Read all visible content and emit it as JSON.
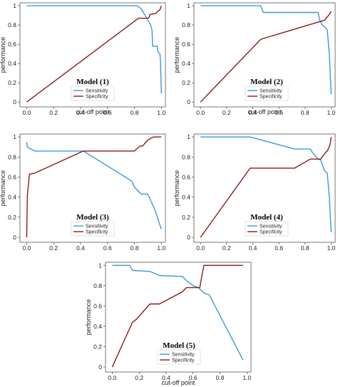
{
  "colors": {
    "sensitivity": "#3a9ad9",
    "specificity": "#8b1a1a"
  },
  "chart_data": [
    {
      "type": "line",
      "title": "Model (1)",
      "xlabel": "cut-off point",
      "ylabel": "performance",
      "xlim": [
        -0.05,
        1.03
      ],
      "ylim": [
        -0.05,
        1.03
      ],
      "xticks": [
        "0.0",
        "0.2",
        "0.4",
        "0.6",
        "0.8",
        "1.0"
      ],
      "yticks": [
        "0",
        "0.2",
        "0.4",
        "0.6",
        "0.8",
        "1"
      ],
      "legend_position": "bottom-right",
      "series": [
        {
          "name": "Sensitivity",
          "color_key": "sensitivity",
          "x": [
            0.0,
            0.82,
            0.85,
            0.9,
            0.92,
            0.93,
            0.935,
            0.97,
            0.975,
            0.99,
            0.993,
            1.0
          ],
          "y": [
            1.0,
            1.0,
            0.97,
            0.85,
            0.8,
            0.75,
            0.58,
            0.58,
            0.52,
            0.5,
            0.42,
            0.09
          ]
        },
        {
          "name": "Specificity",
          "color_key": "specificity",
          "x": [
            0.0,
            0.83,
            0.9,
            0.91,
            0.915,
            0.96,
            0.97,
            0.99,
            1.0
          ],
          "y": [
            0.0,
            0.87,
            0.87,
            0.88,
            0.91,
            0.92,
            0.94,
            0.96,
            1.0
          ]
        }
      ]
    },
    {
      "type": "line",
      "title": "Model (2)",
      "xlabel": "cut-off point",
      "ylabel": "performance",
      "xlim": [
        -0.05,
        1.03
      ],
      "ylim": [
        -0.05,
        1.03
      ],
      "xticks": [
        "0.0",
        "0.2",
        "0.4",
        "0.6",
        "0.8",
        "1.0"
      ],
      "yticks": [
        "0",
        "0.2",
        "0.4",
        "0.6",
        "0.8",
        "1"
      ],
      "legend_position": "bottom-right",
      "series": [
        {
          "name": "Sensitivity",
          "color_key": "sensitivity",
          "x": [
            0.0,
            0.46,
            0.48,
            0.9,
            0.91,
            0.93,
            0.95,
            0.97,
            0.985,
            1.0
          ],
          "y": [
            1.0,
            1.0,
            0.93,
            0.93,
            0.86,
            0.8,
            0.78,
            0.75,
            0.5,
            0.08
          ]
        },
        {
          "name": "Specificity",
          "color_key": "specificity",
          "x": [
            0.0,
            0.46,
            0.48,
            0.95,
            0.96,
            0.98,
            1.0
          ],
          "y": [
            0.0,
            0.65,
            0.66,
            0.85,
            0.87,
            0.9,
            0.94
          ]
        }
      ]
    },
    {
      "type": "line",
      "title": "Model (3)",
      "xlabel": "",
      "ylabel": "performance",
      "xlim": [
        -0.05,
        1.03
      ],
      "ylim": [
        -0.05,
        1.03
      ],
      "xticks": [
        "0.0",
        "0.2",
        "0.4",
        "0.6",
        "0.8",
        "1.0"
      ],
      "yticks": [
        "0",
        "0.2",
        "0.4",
        "0.6",
        "0.8",
        "1"
      ],
      "legend_position": "bottom-right",
      "series": [
        {
          "name": "Sensitivity",
          "color_key": "sensitivity",
          "x": [
            0.0,
            0.005,
            0.03,
            0.06,
            0.42,
            0.78,
            0.8,
            0.85,
            0.9,
            0.95,
            1.0
          ],
          "y": [
            0.95,
            0.9,
            0.88,
            0.86,
            0.86,
            0.56,
            0.5,
            0.43,
            0.43,
            0.28,
            0.08
          ]
        },
        {
          "name": "Specificity",
          "color_key": "specificity",
          "x": [
            0.0,
            0.005,
            0.02,
            0.06,
            0.42,
            0.8,
            0.84,
            0.86,
            0.9,
            0.94,
            0.99,
            1.0
          ],
          "y": [
            0.0,
            0.42,
            0.63,
            0.64,
            0.86,
            0.86,
            0.91,
            0.91,
            0.97,
            1.0,
            1.0,
            1.0
          ]
        }
      ]
    },
    {
      "type": "line",
      "title": "Model (4)",
      "xlabel": "",
      "ylabel": "performance",
      "xlim": [
        -0.05,
        1.03
      ],
      "ylim": [
        -0.05,
        1.03
      ],
      "xticks": [
        "0.0",
        "0.2",
        "0.4",
        "0.6",
        "0.8",
        "1.0"
      ],
      "yticks": [
        "0",
        "0.2",
        "0.4",
        "0.6",
        "0.8",
        "1"
      ],
      "legend_position": "bottom-right",
      "series": [
        {
          "name": "Sensitivity",
          "color_key": "sensitivity",
          "x": [
            0.0,
            0.38,
            0.72,
            0.84,
            0.86,
            0.9,
            0.92,
            0.95,
            0.97,
            0.985,
            1.0
          ],
          "y": [
            1.0,
            1.0,
            0.88,
            0.88,
            0.84,
            0.78,
            0.77,
            0.66,
            0.64,
            0.4,
            0.05
          ]
        },
        {
          "name": "Specificity",
          "color_key": "specificity",
          "x": [
            0.0,
            0.38,
            0.72,
            0.84,
            0.92,
            0.93,
            0.96,
            0.97,
            0.99,
            1.0
          ],
          "y": [
            0.0,
            0.69,
            0.69,
            0.78,
            0.78,
            0.8,
            0.85,
            0.86,
            0.92,
            1.0
          ]
        }
      ]
    },
    {
      "type": "line",
      "title": "Model (5)",
      "xlabel": "cut-off point",
      "ylabel": "performance",
      "xlim": [
        -0.05,
        1.03
      ],
      "ylim": [
        -0.05,
        1.03
      ],
      "xticks": [
        "0.0",
        "0.2",
        "0.4",
        "0.6",
        "0.8",
        "1.0"
      ],
      "yticks": [
        "0",
        "0.2",
        "0.4",
        "0.6",
        "0.8",
        "1"
      ],
      "legend_position": "bottom-left",
      "series": [
        {
          "name": "Sensitivity",
          "color_key": "sensitivity",
          "x": [
            0.0,
            0.13,
            0.15,
            0.28,
            0.35,
            0.52,
            0.56,
            0.6,
            0.64,
            0.68,
            0.72,
            0.97
          ],
          "y": [
            1.0,
            1.0,
            0.95,
            0.94,
            0.9,
            0.89,
            0.84,
            0.8,
            0.78,
            0.73,
            0.71,
            0.07
          ]
        },
        {
          "name": "Specificity",
          "color_key": "specificity",
          "x": [
            0.0,
            0.15,
            0.18,
            0.28,
            0.35,
            0.52,
            0.55,
            0.65,
            0.66,
            0.68,
            0.97
          ],
          "y": [
            0.0,
            0.44,
            0.47,
            0.62,
            0.62,
            0.74,
            0.78,
            0.78,
            0.86,
            1.0,
            1.0
          ]
        }
      ]
    }
  ]
}
